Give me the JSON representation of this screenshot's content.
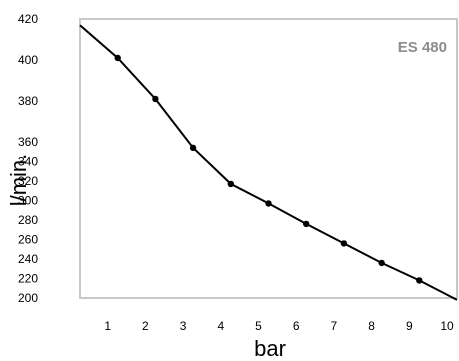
{
  "chart_data": {
    "type": "line",
    "title": "",
    "annotation": "ES 480",
    "xlabel": "bar",
    "ylabel": "l/min.",
    "x_ticks": [
      "1",
      "2",
      "3",
      "4",
      "5",
      "6",
      "7",
      "8",
      "9",
      "10"
    ],
    "y_ticks": [
      "200",
      "220",
      "240",
      "260",
      "280",
      "300",
      "320",
      "340",
      "360",
      "380",
      "400",
      "420"
    ],
    "xlim": [
      0,
      10
    ],
    "y_scale": "piecewise-linear (ticks 360–420 spaced twice as wide as 200–360)",
    "ylim": [
      200,
      420
    ],
    "grid": false,
    "line_color": "#000000",
    "frame_color": "#c8c8c8",
    "annotation_color": "#8c8c8c",
    "series": [
      {
        "x": [
          0,
          1,
          2,
          3,
          4,
          5,
          6,
          7,
          8,
          9,
          10
        ],
        "y": [
          417,
          401,
          381,
          354,
          317,
          297,
          276,
          256,
          236,
          218,
          198
        ],
        "markers": [
          false,
          true,
          true,
          true,
          true,
          true,
          true,
          true,
          true,
          true,
          false
        ]
      }
    ]
  }
}
